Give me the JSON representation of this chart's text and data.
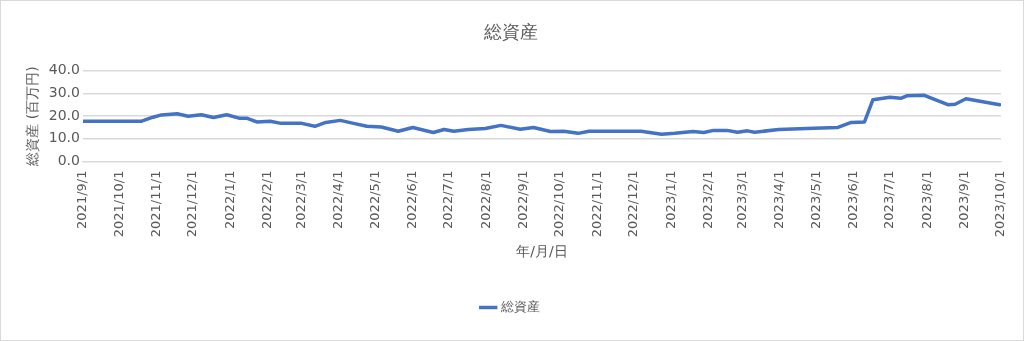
{
  "chart_data": {
    "type": "line",
    "title": "総資産",
    "xlabel": "年/月/日",
    "ylabel": "総資産 (百万円)",
    "x": [
      "2021-09-01",
      "2021-10-19",
      "2021-10-29",
      "2021-11-05",
      "2021-11-18",
      "2021-11-27",
      "2021-12-08",
      "2021-12-18",
      "2021-12-29",
      "2022-01-09",
      "2022-01-15",
      "2022-01-23",
      "2022-02-03",
      "2022-02-12",
      "2022-03-01",
      "2022-03-12",
      "2022-03-21",
      "2022-04-02",
      "2022-04-13",
      "2022-04-24",
      "2022-05-06",
      "2022-05-20",
      "2022-06-01",
      "2022-06-18",
      "2022-06-27",
      "2022-07-05",
      "2022-07-17",
      "2022-07-31",
      "2022-08-13",
      "2022-08-29",
      "2022-09-09",
      "2022-09-23",
      "2022-10-04",
      "2022-10-16",
      "2022-10-25",
      "2022-12-07",
      "2022-12-24",
      "2023-01-04",
      "2023-01-19",
      "2023-01-28",
      "2023-02-05",
      "2023-02-16",
      "2023-02-25",
      "2023-03-05",
      "2023-03-11",
      "2023-03-31",
      "2023-04-29",
      "2023-05-19",
      "2023-05-30",
      "2023-06-10",
      "2023-06-17",
      "2023-07-01",
      "2023-07-10",
      "2023-07-15",
      "2023-07-29",
      "2023-08-18",
      "2023-08-24",
      "2023-09-02",
      "2023-09-30"
    ],
    "series": [
      {
        "name": "総資産",
        "color": "#4472c4",
        "values": [
          17.7,
          17.7,
          19.5,
          20.5,
          21.0,
          19.9,
          20.6,
          19.4,
          20.6,
          19.0,
          19.0,
          17.4,
          17.7,
          16.8,
          16.8,
          15.5,
          17.2,
          18.1,
          16.8,
          15.5,
          15.2,
          13.3,
          15.0,
          12.8,
          14.1,
          13.3,
          14.1,
          14.5,
          15.9,
          14.2,
          15.0,
          13.2,
          13.3,
          12.4,
          13.3,
          13.3,
          12.0,
          12.4,
          13.2,
          12.8,
          13.7,
          13.7,
          12.9,
          13.5,
          12.9,
          14.1,
          14.6,
          15.0,
          17.2,
          17.4,
          27.2,
          28.3,
          27.8,
          28.9,
          29.2,
          25.0,
          25.2,
          27.6,
          25.0
        ]
      }
    ],
    "xlim": [
      "2021-09-01",
      "2023-10-01"
    ],
    "xticks": [
      {
        "value": "2021-09-01",
        "label": "2021/9/1"
      },
      {
        "value": "2021-10-01",
        "label": "2021/10/1"
      },
      {
        "value": "2021-11-01",
        "label": "2021/11/1"
      },
      {
        "value": "2021-12-01",
        "label": "2021/12/1"
      },
      {
        "value": "2022-01-01",
        "label": "2022/1/1"
      },
      {
        "value": "2022-02-01",
        "label": "2022/2/1"
      },
      {
        "value": "2022-03-01",
        "label": "2022/3/1"
      },
      {
        "value": "2022-04-01",
        "label": "2022/4/1"
      },
      {
        "value": "2022-05-01",
        "label": "2022/5/1"
      },
      {
        "value": "2022-06-01",
        "label": "2022/6/1"
      },
      {
        "value": "2022-07-01",
        "label": "2022/7/1"
      },
      {
        "value": "2022-08-01",
        "label": "2022/8/1"
      },
      {
        "value": "2022-09-01",
        "label": "2022/9/1"
      },
      {
        "value": "2022-10-01",
        "label": "2022/10/1"
      },
      {
        "value": "2022-11-01",
        "label": "2022/11/1"
      },
      {
        "value": "2022-12-01",
        "label": "2022/12/1"
      },
      {
        "value": "2023-01-01",
        "label": "2023/1/1"
      },
      {
        "value": "2023-02-01",
        "label": "2023/2/1"
      },
      {
        "value": "2023-03-01",
        "label": "2023/3/1"
      },
      {
        "value": "2023-04-01",
        "label": "2023/4/1"
      },
      {
        "value": "2023-05-01",
        "label": "2023/5/1"
      },
      {
        "value": "2023-06-01",
        "label": "2023/6/1"
      },
      {
        "value": "2023-07-01",
        "label": "2023/7/1"
      },
      {
        "value": "2023-08-01",
        "label": "2023/8/1"
      },
      {
        "value": "2023-09-01",
        "label": "2023/9/1"
      },
      {
        "value": "2023-10-01",
        "label": "2023/10/1"
      }
    ],
    "ylim": [
      0,
      40
    ],
    "yticks": [
      {
        "value": 0,
        "label": "0.0"
      },
      {
        "value": 10,
        "label": "10.0"
      },
      {
        "value": 20,
        "label": "20.0"
      },
      {
        "value": 30,
        "label": "30.0"
      },
      {
        "value": 40,
        "label": "40.0"
      }
    ],
    "grid": "y",
    "legend": "bottom",
    "marker": "none",
    "line_style": "solid"
  }
}
